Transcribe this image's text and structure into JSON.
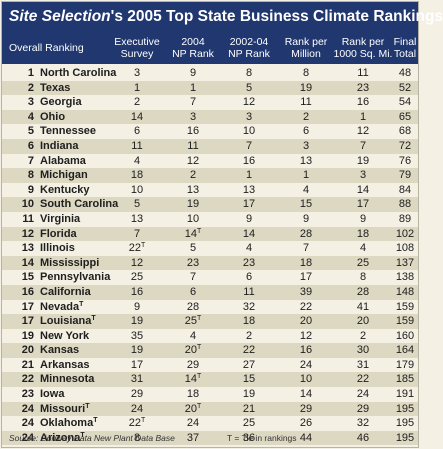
{
  "title": {
    "brand": "Site Selection",
    "rest": "'s 2005 Top State Business Climate Rankings"
  },
  "columns": {
    "overall": "Overall Ranking",
    "exec_1": "Executive",
    "exec_2": "Survey",
    "np2004_1": "2004",
    "np2004_2": "NP Rank",
    "np0204_1": "2002-04",
    "np0204_2": "NP Rank",
    "pm_1": "Rank per",
    "pm_2": "Million",
    "psq_1": "Rank per",
    "psq_2": "1000 Sq. Mi.",
    "final_1": "Final",
    "final_2": "Total"
  },
  "footer": {
    "source": "Source: Conway Data New Plant Data Base",
    "note": "T = Tie in rankings"
  },
  "chart_data": {
    "type": "table",
    "title": "Site Selection's 2005 Top State Business Climate Rankings",
    "tie_marker": "T",
    "rows": [
      {
        "rank": "1",
        "state": "North Carolina",
        "exec": "3",
        "np2004": "9",
        "np0204": "8",
        "per_million": "8",
        "per_sqmi": "11",
        "total": "48"
      },
      {
        "rank": "2",
        "state": "Texas",
        "exec": "1",
        "np2004": "1",
        "np0204": "5",
        "per_million": "19",
        "per_sqmi": "23",
        "total": "52"
      },
      {
        "rank": "3",
        "state": "Georgia",
        "exec": "2",
        "np2004": "7",
        "np0204": "12",
        "per_million": "11",
        "per_sqmi": "16",
        "total": "54"
      },
      {
        "rank": "4",
        "state": "Ohio",
        "exec": "14",
        "np2004": "3",
        "np0204": "3",
        "per_million": "2",
        "per_sqmi": "1",
        "total": "65"
      },
      {
        "rank": "5",
        "state": "Tennessee",
        "exec": "6",
        "np2004": "16",
        "np0204": "10",
        "per_million": "6",
        "per_sqmi": "12",
        "total": "68"
      },
      {
        "rank": "6",
        "state": "Indiana",
        "exec": "11",
        "np2004": "11",
        "np0204": "7",
        "per_million": "3",
        "per_sqmi": "7",
        "total": "72"
      },
      {
        "rank": "7",
        "state": "Alabama",
        "exec": "4",
        "np2004": "12",
        "np0204": "16",
        "per_million": "13",
        "per_sqmi": "19",
        "total": "76"
      },
      {
        "rank": "8",
        "state": "Michigan",
        "exec": "18",
        "np2004": "2",
        "np0204": "1",
        "per_million": "1",
        "per_sqmi": "3",
        "total": "79"
      },
      {
        "rank": "9",
        "state": "Kentucky",
        "exec": "10",
        "np2004": "13",
        "np0204": "13",
        "per_million": "4",
        "per_sqmi": "14",
        "total": "84"
      },
      {
        "rank": "10",
        "state": "South Carolina",
        "exec": "5",
        "np2004": "19",
        "np0204": "17",
        "per_million": "15",
        "per_sqmi": "17",
        "total": "88"
      },
      {
        "rank": "11",
        "state": "Virginia",
        "exec": "13",
        "np2004": "10",
        "np0204": "9",
        "per_million": "9",
        "per_sqmi": "9",
        "total": "89"
      },
      {
        "rank": "12",
        "state": "Florida",
        "exec": "7",
        "np2004": "14T",
        "np0204": "14",
        "per_million": "28",
        "per_sqmi": "18",
        "total": "102"
      },
      {
        "rank": "13",
        "state": "Illinois",
        "exec": "22T",
        "np2004": "5",
        "np0204": "4",
        "per_million": "7",
        "per_sqmi": "4",
        "total": "108"
      },
      {
        "rank": "14",
        "state": "Mississippi",
        "exec": "12",
        "np2004": "23",
        "np0204": "23",
        "per_million": "18",
        "per_sqmi": "25",
        "total": "137"
      },
      {
        "rank": "15",
        "state": "Pennsylvania",
        "exec": "25",
        "np2004": "7",
        "np0204": "6",
        "per_million": "17",
        "per_sqmi": "8",
        "total": "138"
      },
      {
        "rank": "16",
        "state": "California",
        "exec": "16",
        "np2004": "6",
        "np0204": "11",
        "per_million": "39",
        "per_sqmi": "28",
        "total": "148"
      },
      {
        "rank": "17",
        "state": "NevadaT",
        "exec": "9",
        "np2004": "28",
        "np0204": "32",
        "per_million": "22",
        "per_sqmi": "41",
        "total": "159"
      },
      {
        "rank": "17",
        "state": "LouisianaT",
        "exec": "19",
        "np2004": "25T",
        "np0204": "18",
        "per_million": "20",
        "per_sqmi": "20",
        "total": "159"
      },
      {
        "rank": "19",
        "state": "New York",
        "exec": "35",
        "np2004": "4",
        "np0204": "2",
        "per_million": "12",
        "per_sqmi": "2",
        "total": "160"
      },
      {
        "rank": "20",
        "state": "Kansas",
        "exec": "19",
        "np2004": "20T",
        "np0204": "22",
        "per_million": "16",
        "per_sqmi": "30",
        "total": "164"
      },
      {
        "rank": "21",
        "state": "Arkansas",
        "exec": "17",
        "np2004": "29",
        "np0204": "27",
        "per_million": "24",
        "per_sqmi": "31",
        "total": "179"
      },
      {
        "rank": "22",
        "state": "Minnesota",
        "exec": "31",
        "np2004": "14T",
        "np0204": "15",
        "per_million": "10",
        "per_sqmi": "22",
        "total": "185"
      },
      {
        "rank": "23",
        "state": "Iowa",
        "exec": "29",
        "np2004": "18",
        "np0204": "19",
        "per_million": "14",
        "per_sqmi": "24",
        "total": "191"
      },
      {
        "rank": "24",
        "state": "MissouriT",
        "exec": "24",
        "np2004": "20T",
        "np0204": "21",
        "per_million": "29",
        "per_sqmi": "29",
        "total": "195"
      },
      {
        "rank": "24",
        "state": "OklahomaT",
        "exec": "22T",
        "np2004": "24",
        "np0204": "25",
        "per_million": "26",
        "per_sqmi": "32",
        "total": "195"
      },
      {
        "rank": "24",
        "state": "ArizonaT",
        "exec": "8",
        "np2004": "37",
        "np0204": "36",
        "per_million": "44",
        "per_sqmi": "46",
        "total": "195"
      }
    ]
  }
}
